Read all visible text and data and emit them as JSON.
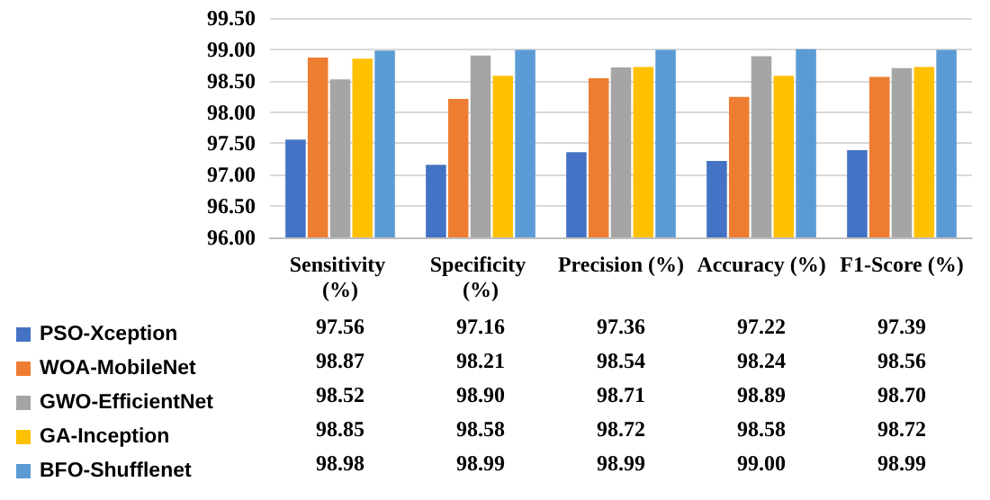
{
  "chart_data": {
    "type": "bar",
    "categories": [
      "Sensitivity (%)",
      "Specificity (%)",
      "Precision (%)",
      "Accuracy (%)",
      "F1-Score (%)"
    ],
    "series": [
      {
        "name": "PSO-Xception",
        "color": "#4472c4",
        "values": [
          97.56,
          97.16,
          97.36,
          97.22,
          97.39
        ],
        "value_labels": [
          "97.56",
          "97.16",
          "97.36",
          "97.22",
          "97.39"
        ]
      },
      {
        "name": "WOA-MobileNet",
        "color": "#ed7d31",
        "values": [
          98.87,
          98.21,
          98.54,
          98.24,
          98.56
        ],
        "value_labels": [
          "98.87",
          "98.21",
          "98.54",
          "98.24",
          "98.56"
        ]
      },
      {
        "name": "GWO-EfficientNet",
        "color": "#a5a5a5",
        "values": [
          98.52,
          98.9,
          98.71,
          98.89,
          98.7
        ],
        "value_labels": [
          "98.52",
          "98.90",
          "98.71",
          "98.89",
          "98.70"
        ]
      },
      {
        "name": "GA-Inception",
        "color": "#ffc000",
        "values": [
          98.85,
          98.58,
          98.72,
          98.58,
          98.72
        ],
        "value_labels": [
          "98.85",
          "98.58",
          "98.72",
          "98.58",
          "98.72"
        ]
      },
      {
        "name": "BFO-Shufflenet",
        "color": "#5b9bd5",
        "values": [
          98.98,
          98.99,
          98.99,
          99.0,
          98.99
        ],
        "value_labels": [
          "98.98",
          "98.99",
          "98.99",
          "99.00",
          "98.99"
        ]
      }
    ],
    "ylim": [
      96,
      99.5
    ],
    "yticks": [
      {
        "value": 96,
        "label": "96.00"
      },
      {
        "value": 96.5,
        "label": "96.50"
      },
      {
        "value": 97,
        "label": "97.00"
      },
      {
        "value": 97.5,
        "label": "97.50"
      },
      {
        "value": 98,
        "label": "98.00"
      },
      {
        "value": 98.5,
        "label": "98.50"
      },
      {
        "value": 99,
        "label": "99.00"
      },
      {
        "value": 99.5,
        "label": "99.50"
      }
    ],
    "grid": "y",
    "legend": "bottom left"
  }
}
